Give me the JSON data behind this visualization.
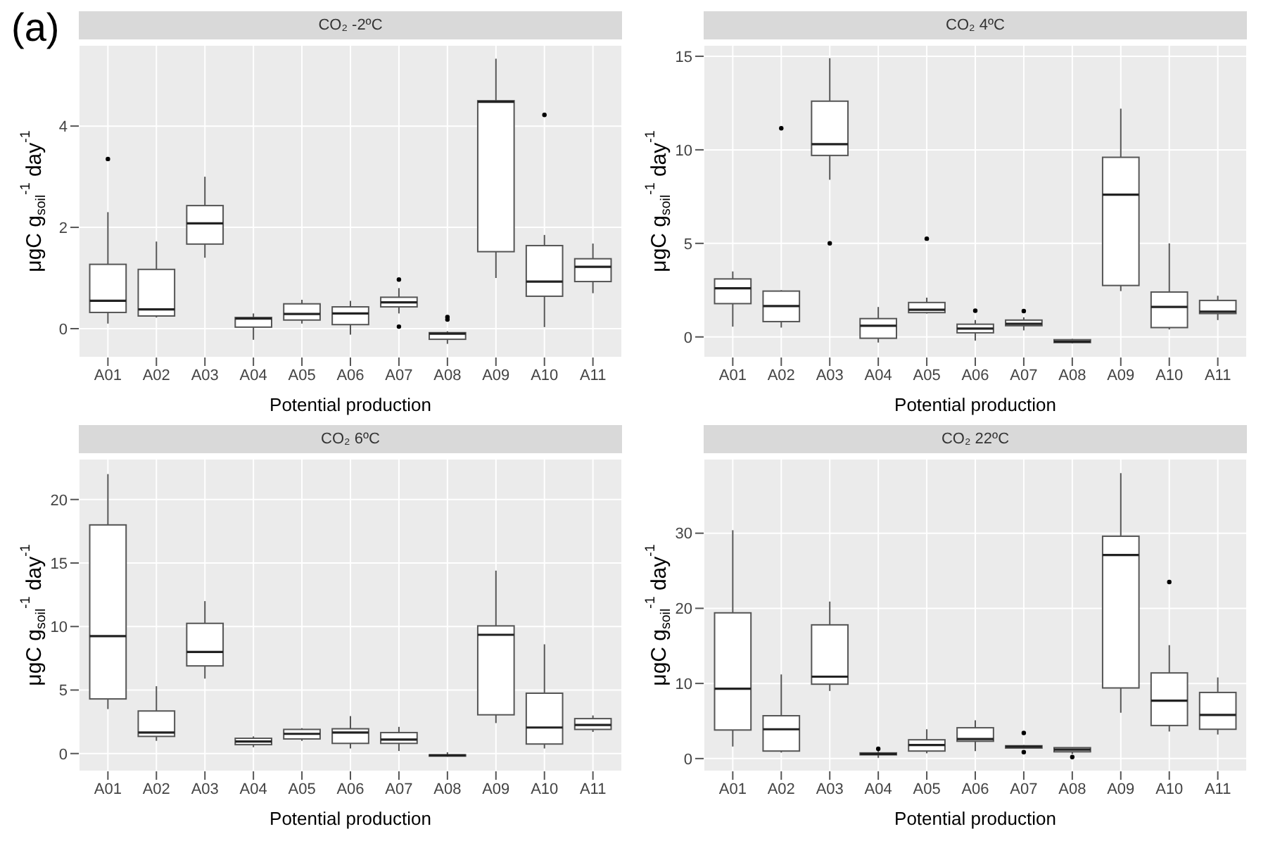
{
  "chart_data": [
    {
      "type": "box",
      "title": "CO₂ -2ºC",
      "xlabel": "Potential production",
      "ylabel": "μgC g$_{soil}$$^{-1}$ day$^{-1}$",
      "annotations": [
        "(a)"
      ],
      "categories": [
        "A01",
        "A02",
        "A03",
        "A04",
        "A05",
        "A06",
        "A07",
        "A08",
        "A09",
        "A10",
        "A11"
      ],
      "ylim": [
        -0.57,
        5.6
      ],
      "yticks": [
        0,
        2,
        4
      ],
      "grid": true,
      "boxes": [
        {
          "low": 0.1,
          "q1": 0.32,
          "median": 0.55,
          "q3": 1.27,
          "high": 2.3,
          "outliers": [
            3.35
          ]
        },
        {
          "low": 0.22,
          "q1": 0.25,
          "median": 0.38,
          "q3": 1.17,
          "high": 1.72
        },
        {
          "low": 1.4,
          "q1": 1.67,
          "median": 2.08,
          "q3": 2.43,
          "high": 3.0
        },
        {
          "low": -0.22,
          "q1": 0.03,
          "median": 0.2,
          "q3": 0.22,
          "high": 0.3
        },
        {
          "low": 0.1,
          "q1": 0.17,
          "median": 0.29,
          "q3": 0.49,
          "high": 0.57
        },
        {
          "low": -0.12,
          "q1": 0.08,
          "median": 0.3,
          "q3": 0.43,
          "high": 0.55
        },
        {
          "low": 0.3,
          "q1": 0.43,
          "median": 0.52,
          "q3": 0.62,
          "high": 0.8,
          "outliers": [
            0.97,
            0.04
          ]
        },
        {
          "low": -0.3,
          "q1": -0.21,
          "median": -0.1,
          "q3": -0.08,
          "high": -0.05,
          "outliers": [
            0.23,
            0.18
          ]
        },
        {
          "low": 1.0,
          "q1": 1.52,
          "median": 4.48,
          "q3": 4.5,
          "high": 5.33
        },
        {
          "low": 0.03,
          "q1": 0.64,
          "median": 0.93,
          "q3": 1.64,
          "high": 1.85,
          "outliers": [
            4.22
          ]
        },
        {
          "low": 0.7,
          "q1": 0.93,
          "median": 1.22,
          "q3": 1.38,
          "high": 1.68
        }
      ]
    },
    {
      "type": "box",
      "title": "CO₂ 4ºC",
      "xlabel": "Potential production",
      "ylabel": "μgC g$_{soil}$$^{-1}$ day$^{-1}$",
      "categories": [
        "A01",
        "A02",
        "A03",
        "A04",
        "A05",
        "A06",
        "A07",
        "A08",
        "A09",
        "A10",
        "A11"
      ],
      "ylim": [
        -1.1,
        15.6
      ],
      "yticks": [
        0,
        5,
        10,
        15
      ],
      "grid": true,
      "boxes": [
        {
          "low": 0.55,
          "q1": 1.78,
          "median": 2.6,
          "q3": 3.1,
          "high": 3.5
        },
        {
          "low": 0.5,
          "q1": 0.82,
          "median": 1.65,
          "q3": 2.45,
          "high": 2.5,
          "outliers": [
            11.15
          ]
        },
        {
          "low": 8.4,
          "q1": 9.7,
          "median": 10.3,
          "q3": 12.6,
          "high": 14.9,
          "outliers": [
            5.0
          ]
        },
        {
          "low": -0.3,
          "q1": -0.07,
          "median": 0.6,
          "q3": 0.98,
          "high": 1.6
        },
        {
          "low": 1.25,
          "q1": 1.3,
          "median": 1.45,
          "q3": 1.84,
          "high": 2.1,
          "outliers": [
            5.25
          ]
        },
        {
          "low": -0.2,
          "q1": 0.22,
          "median": 0.45,
          "q3": 0.68,
          "high": 0.9,
          "outliers": [
            1.4
          ]
        },
        {
          "low": 0.35,
          "q1": 0.6,
          "median": 0.7,
          "q3": 0.9,
          "high": 1.05,
          "outliers": [
            1.38
          ]
        },
        {
          "low": -0.35,
          "q1": -0.3,
          "median": -0.25,
          "q3": -0.15,
          "high": -0.1
        },
        {
          "low": 2.45,
          "q1": 2.75,
          "median": 7.6,
          "q3": 9.6,
          "high": 12.2
        },
        {
          "low": 0.4,
          "q1": 0.5,
          "median": 1.6,
          "q3": 2.4,
          "high": 5.0
        },
        {
          "low": 0.9,
          "q1": 1.25,
          "median": 1.35,
          "q3": 1.95,
          "high": 2.2
        }
      ]
    },
    {
      "type": "box",
      "title": "CO₂ 6ºC",
      "xlabel": "Potential production",
      "ylabel": "μgC g$_{soil}$$^{-1}$ day$^{-1}$",
      "categories": [
        "A01",
        "A02",
        "A03",
        "A04",
        "A05",
        "A06",
        "A07",
        "A08",
        "A09",
        "A10",
        "A11"
      ],
      "ylim": [
        -1.4,
        23.2
      ],
      "yticks": [
        0,
        5,
        10,
        15,
        20
      ],
      "grid": true,
      "boxes": [
        {
          "low": 3.5,
          "q1": 4.3,
          "median": 9.25,
          "q3": 18.0,
          "high": 22.0
        },
        {
          "low": 1.0,
          "q1": 1.35,
          "median": 1.65,
          "q3": 3.35,
          "high": 5.3
        },
        {
          "low": 5.9,
          "q1": 6.9,
          "median": 8.0,
          "q3": 10.25,
          "high": 12.0
        },
        {
          "low": 0.5,
          "q1": 0.7,
          "median": 0.95,
          "q3": 1.2,
          "high": 1.35
        },
        {
          "low": 1.0,
          "q1": 1.15,
          "median": 1.55,
          "q3": 1.9,
          "high": 2.0
        },
        {
          "low": 0.4,
          "q1": 0.8,
          "median": 1.65,
          "q3": 1.95,
          "high": 2.95
        },
        {
          "low": 0.2,
          "q1": 0.8,
          "median": 1.1,
          "q3": 1.65,
          "high": 2.1
        },
        {
          "low": -0.25,
          "q1": -0.2,
          "median": -0.15,
          "q3": -0.1,
          "high": 0.1
        },
        {
          "low": 2.4,
          "q1": 3.05,
          "median": 9.35,
          "q3": 10.05,
          "high": 14.4
        },
        {
          "low": 0.4,
          "q1": 0.75,
          "median": 2.05,
          "q3": 4.75,
          "high": 8.6
        },
        {
          "low": 1.7,
          "q1": 1.9,
          "median": 2.25,
          "q3": 2.75,
          "high": 3.0
        }
      ]
    },
    {
      "type": "box",
      "title": "CO₂ 22ºC",
      "xlabel": "Potential production",
      "ylabel": "μgC g$_{soil}$$^{-1}$ day$^{-1}$",
      "categories": [
        "A01",
        "A02",
        "A03",
        "A04",
        "A05",
        "A06",
        "A07",
        "A08",
        "A09",
        "A10",
        "A11"
      ],
      "ylim": [
        -1.7,
        39.9
      ],
      "yticks": [
        0,
        10,
        20,
        30
      ],
      "grid": true,
      "boxes": [
        {
          "low": 1.6,
          "q1": 3.8,
          "median": 9.3,
          "q3": 19.4,
          "high": 30.4
        },
        {
          "low": 0.8,
          "q1": 1.0,
          "median": 3.9,
          "q3": 5.7,
          "high": 11.2
        },
        {
          "low": 9.0,
          "q1": 9.9,
          "median": 10.9,
          "q3": 17.8,
          "high": 20.9
        },
        {
          "low": 0.1,
          "q1": 0.5,
          "median": 0.6,
          "q3": 0.75,
          "high": 1.0,
          "outliers": [
            1.3
          ]
        },
        {
          "low": 0.7,
          "q1": 1.0,
          "median": 1.8,
          "q3": 2.5,
          "high": 3.9
        },
        {
          "low": 1.0,
          "q1": 2.3,
          "median": 2.6,
          "q3": 4.1,
          "high": 5.1
        },
        {
          "low": 1.3,
          "q1": 1.4,
          "median": 1.6,
          "q3": 1.7,
          "high": 1.8,
          "outliers": [
            3.4,
            0.85
          ]
        },
        {
          "low": 0.6,
          "q1": 0.9,
          "median": 1.2,
          "q3": 1.45,
          "high": 1.5,
          "outliers": [
            0.2
          ]
        },
        {
          "low": 6.1,
          "q1": 9.4,
          "median": 27.1,
          "q3": 29.6,
          "high": 38.0
        },
        {
          "low": 3.6,
          "q1": 4.4,
          "median": 7.7,
          "q3": 11.4,
          "high": 15.1,
          "outliers": [
            23.5
          ]
        },
        {
          "low": 3.2,
          "q1": 3.9,
          "median": 5.8,
          "q3": 8.8,
          "high": 10.8
        }
      ]
    }
  ]
}
